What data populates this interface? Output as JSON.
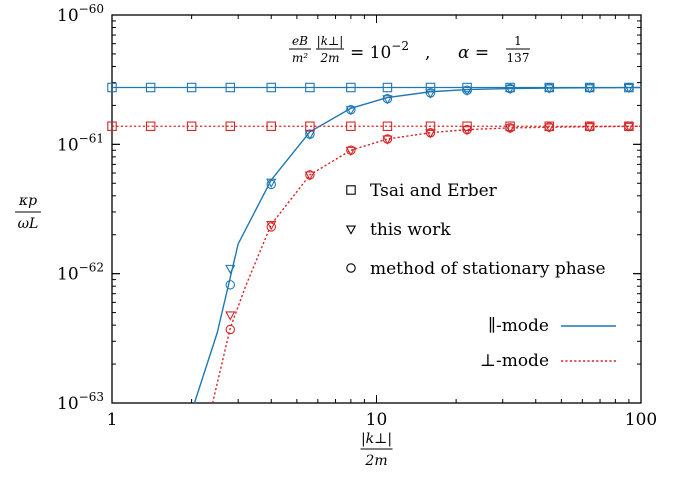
{
  "chart_data": {
    "type": "line",
    "x_scale": "log",
    "y_scale": "log",
    "xlim": [
      1,
      100
    ],
    "ylim": [
      1e-63,
      1e-60
    ],
    "xlabel_num": "|k⊥|",
    "xlabel_den": "2m",
    "ylabel_num": "κp",
    "ylabel_den": "ωL",
    "x_ticks": [
      {
        "value": 1,
        "label": "1"
      },
      {
        "value": 10,
        "label": "10"
      },
      {
        "value": 100,
        "label": "100"
      }
    ],
    "y_ticks": [
      {
        "value": 1e-63,
        "base": "10",
        "exp": "−63"
      },
      {
        "value": 1e-62,
        "base": "10",
        "exp": "−62"
      },
      {
        "value": 1e-61,
        "base": "10",
        "exp": "−61"
      },
      {
        "value": 1e-60,
        "base": "10",
        "exp": "−60"
      }
    ],
    "annotation": {
      "lhs_frac_num": "eB",
      "lhs_frac_den": "m²",
      "lhs_frac2_num": "|k⊥|",
      "lhs_frac2_den": "2m",
      "rhs": "= 10",
      "rhs_exp": "−2",
      "sep": ",",
      "alpha": "α =",
      "alpha_num": "1",
      "alpha_den": "137"
    },
    "colors": {
      "parallel": "#1f77b4",
      "perp": "#d62728"
    },
    "legend_markers": [
      {
        "marker": "square",
        "label": "Tsai and Erber"
      },
      {
        "marker": "triangle",
        "label": "this work"
      },
      {
        "marker": "circle",
        "label": "method of stationary phase"
      }
    ],
    "legend_lines": [
      {
        "label": "∥-mode",
        "series": "parallel"
      },
      {
        "label": "⊥-mode",
        "series": "perp"
      }
    ],
    "series": [
      {
        "name": "∥-mode",
        "key": "parallel",
        "asymptote": 2.75e-61,
        "curve": [
          [
            2.05,
            1e-63
          ],
          [
            2.5,
            3.5e-63
          ],
          [
            3,
            1.7e-62
          ],
          [
            4,
            5.3e-62
          ],
          [
            5.6,
            1.25e-61
          ],
          [
            8,
            1.9e-61
          ],
          [
            11,
            2.3e-61
          ],
          [
            16,
            2.55e-61
          ],
          [
            22,
            2.65e-61
          ],
          [
            32,
            2.7e-61
          ],
          [
            50,
            2.73e-61
          ],
          [
            100,
            2.75e-61
          ]
        ],
        "tsai_erber": [
          [
            1,
            2.75e-61
          ],
          [
            1.4,
            2.75e-61
          ],
          [
            2,
            2.75e-61
          ],
          [
            2.8,
            2.75e-61
          ],
          [
            4,
            2.75e-61
          ],
          [
            5.6,
            2.75e-61
          ],
          [
            8,
            2.75e-61
          ],
          [
            11,
            2.75e-61
          ],
          [
            16,
            2.75e-61
          ],
          [
            22,
            2.75e-61
          ],
          [
            32,
            2.75e-61
          ],
          [
            45,
            2.75e-61
          ],
          [
            64,
            2.75e-61
          ],
          [
            90,
            2.75e-61
          ]
        ],
        "this_work": [
          [
            2.8,
            1.1e-62
          ],
          [
            4,
            5.1e-62
          ],
          [
            5.6,
            1.2e-61
          ],
          [
            8,
            1.85e-61
          ],
          [
            11,
            2.25e-61
          ],
          [
            16,
            2.5e-61
          ],
          [
            22,
            2.62e-61
          ],
          [
            32,
            2.7e-61
          ],
          [
            45,
            2.73e-61
          ],
          [
            64,
            2.74e-61
          ],
          [
            90,
            2.75e-61
          ]
        ],
        "stationary_phase": [
          [
            2.8,
            8.2e-63
          ],
          [
            4,
            4.9e-62
          ],
          [
            5.6,
            1.2e-61
          ],
          [
            8,
            1.85e-61
          ],
          [
            11,
            2.25e-61
          ],
          [
            16,
            2.5e-61
          ],
          [
            22,
            2.62e-61
          ],
          [
            32,
            2.7e-61
          ],
          [
            45,
            2.73e-61
          ],
          [
            64,
            2.74e-61
          ],
          [
            90,
            2.75e-61
          ]
        ]
      },
      {
        "name": "⊥-mode",
        "key": "perp",
        "asymptote": 1.38e-61,
        "curve": [
          [
            2.4,
            1e-63
          ],
          [
            2.8,
            3.8e-63
          ],
          [
            3.2,
            8e-63
          ],
          [
            4,
            2.4e-62
          ],
          [
            5.6,
            5.8e-62
          ],
          [
            8,
            9e-62
          ],
          [
            11,
            1.1e-61
          ],
          [
            16,
            1.23e-61
          ],
          [
            22,
            1.3e-61
          ],
          [
            32,
            1.34e-61
          ],
          [
            50,
            1.36e-61
          ],
          [
            100,
            1.38e-61
          ]
        ],
        "tsai_erber": [
          [
            1,
            1.38e-61
          ],
          [
            1.4,
            1.38e-61
          ],
          [
            2,
            1.38e-61
          ],
          [
            2.8,
            1.38e-61
          ],
          [
            4,
            1.38e-61
          ],
          [
            5.6,
            1.38e-61
          ],
          [
            8,
            1.38e-61
          ],
          [
            11,
            1.38e-61
          ],
          [
            16,
            1.38e-61
          ],
          [
            22,
            1.38e-61
          ],
          [
            32,
            1.38e-61
          ],
          [
            45,
            1.38e-61
          ],
          [
            64,
            1.38e-61
          ],
          [
            90,
            1.38e-61
          ]
        ],
        "this_work": [
          [
            2.8,
            4.8e-63
          ],
          [
            4,
            2.4e-62
          ],
          [
            5.6,
            5.8e-62
          ],
          [
            8,
            9e-62
          ],
          [
            11,
            1.1e-61
          ],
          [
            16,
            1.23e-61
          ],
          [
            22,
            1.3e-61
          ],
          [
            32,
            1.34e-61
          ],
          [
            45,
            1.36e-61
          ],
          [
            64,
            1.37e-61
          ],
          [
            90,
            1.38e-61
          ]
        ],
        "stationary_phase": [
          [
            2.8,
            3.7e-63
          ],
          [
            4,
            2.3e-62
          ],
          [
            5.6,
            5.8e-62
          ],
          [
            8,
            9e-62
          ],
          [
            11,
            1.1e-61
          ],
          [
            16,
            1.23e-61
          ],
          [
            22,
            1.3e-61
          ],
          [
            32,
            1.34e-61
          ],
          [
            45,
            1.36e-61
          ],
          [
            64,
            1.37e-61
          ],
          [
            90,
            1.38e-61
          ]
        ]
      }
    ]
  }
}
